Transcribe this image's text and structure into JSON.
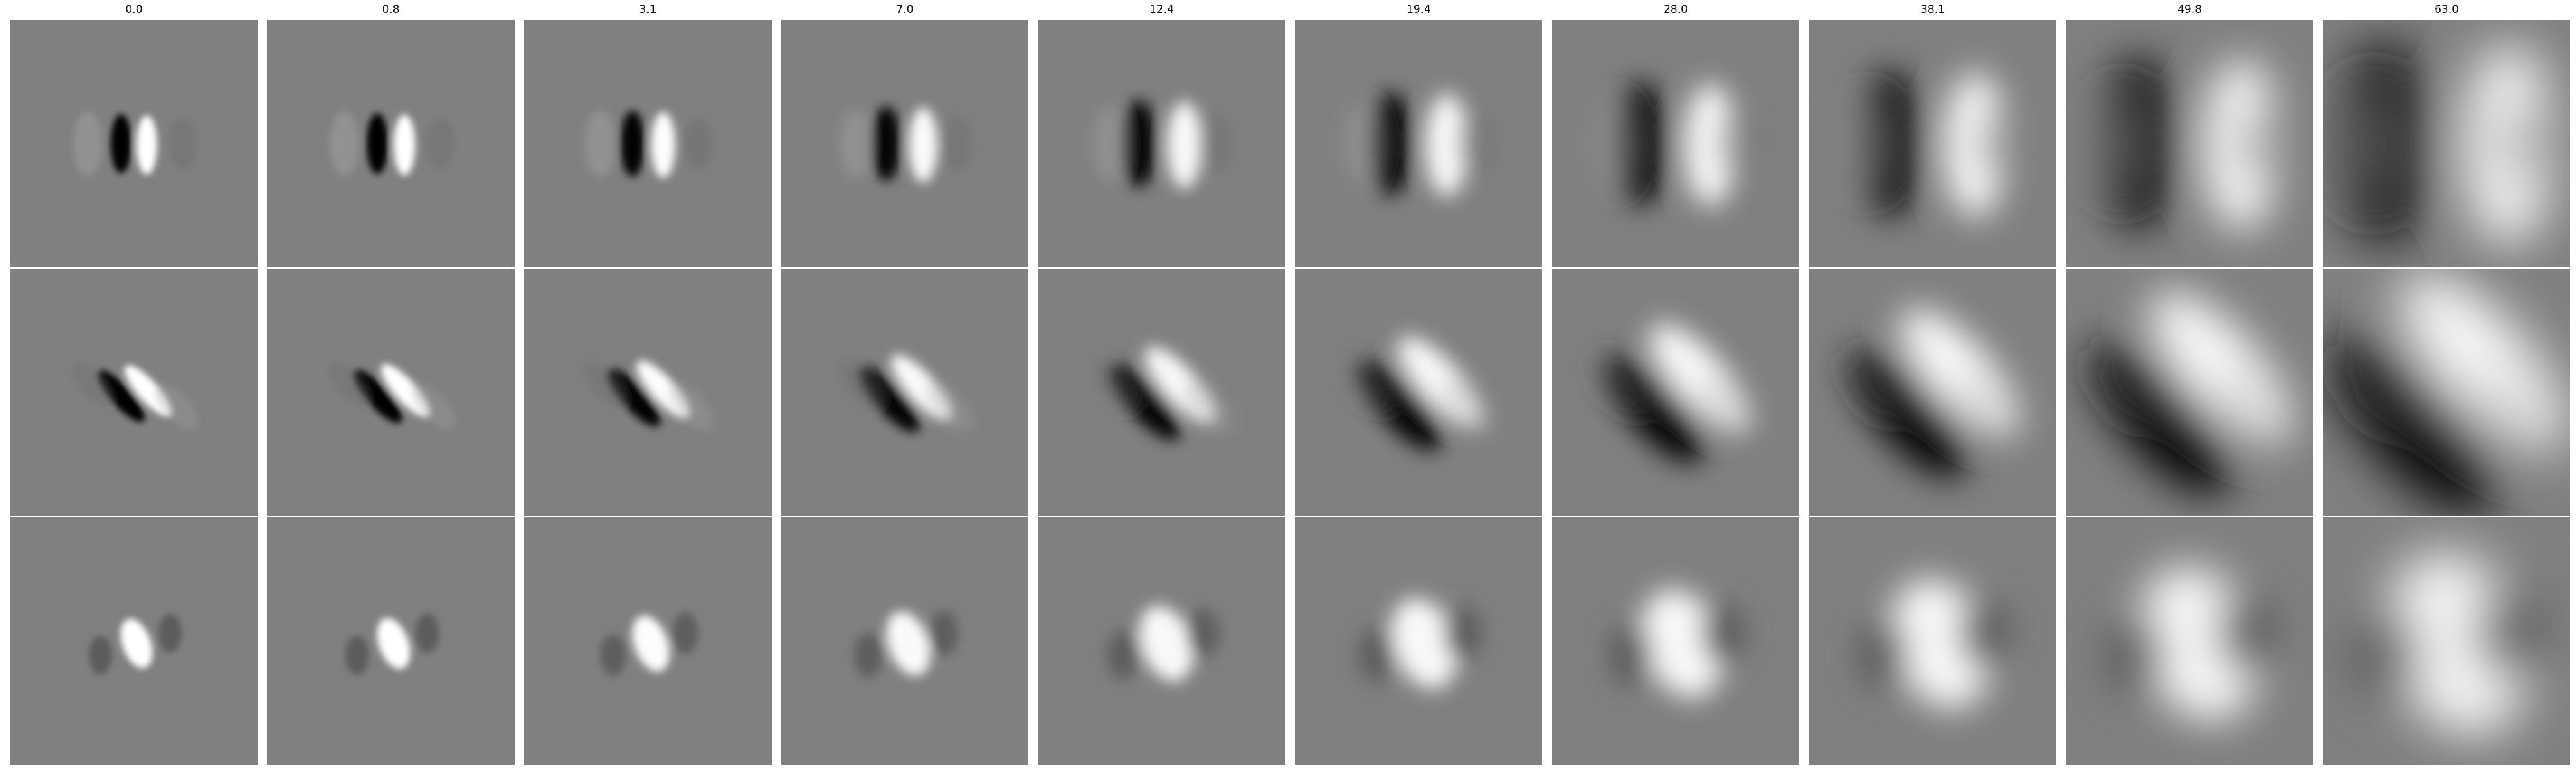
{
  "figure": {
    "column_titles": [
      "0.0",
      "0.8",
      "3.1",
      "7.0",
      "12.4",
      "19.4",
      "28.0",
      "38.1",
      "49.8",
      "63.0"
    ],
    "rows": [
      {
        "name": "vertical-odd-filter",
        "panels": [
          {
            "blur": 0.0,
            "contrast": 1.0
          },
          {
            "blur": 0.8,
            "contrast": 1.0
          },
          {
            "blur": 3.1,
            "contrast": 0.98
          },
          {
            "blur": 7.0,
            "contrast": 0.96
          },
          {
            "blur": 12.4,
            "contrast": 0.95
          },
          {
            "blur": 19.4,
            "contrast": 0.95
          },
          {
            "blur": 28.0,
            "contrast": 0.95
          },
          {
            "blur": 38.1,
            "contrast": 0.95
          },
          {
            "blur": 49.8,
            "contrast": 0.95
          },
          {
            "blur": 63.0,
            "contrast": 0.95
          }
        ]
      },
      {
        "name": "diagonal-odd-filter",
        "panels": [
          {
            "blur": 0.0,
            "contrast": 1.0
          },
          {
            "blur": 0.8,
            "contrast": 1.0
          },
          {
            "blur": 3.1,
            "contrast": 0.98
          },
          {
            "blur": 7.0,
            "contrast": 0.96
          },
          {
            "blur": 12.4,
            "contrast": 0.95
          },
          {
            "blur": 19.4,
            "contrast": 0.95
          },
          {
            "blur": 28.0,
            "contrast": 0.95
          },
          {
            "blur": 38.1,
            "contrast": 0.95
          },
          {
            "blur": 49.8,
            "contrast": 0.95
          },
          {
            "blur": 63.0,
            "contrast": 0.95
          }
        ]
      },
      {
        "name": "center-blob-filter",
        "panels": [
          {
            "blur": 0.0,
            "contrast": 1.0
          },
          {
            "blur": 0.8,
            "contrast": 1.0
          },
          {
            "blur": 3.1,
            "contrast": 0.98
          },
          {
            "blur": 7.0,
            "contrast": 0.96
          },
          {
            "blur": 12.4,
            "contrast": 0.95
          },
          {
            "blur": 19.4,
            "contrast": 0.95
          },
          {
            "blur": 28.0,
            "contrast": 0.95
          },
          {
            "blur": 38.1,
            "contrast": 0.95
          },
          {
            "blur": 49.8,
            "contrast": 0.95
          },
          {
            "blur": 63.0,
            "contrast": 0.95
          }
        ]
      }
    ]
  }
}
